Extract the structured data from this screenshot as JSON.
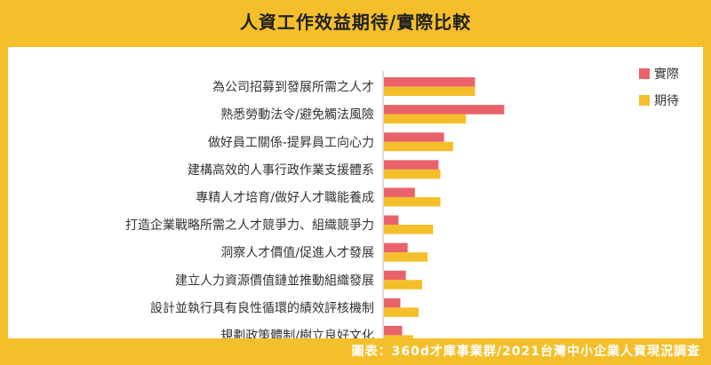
{
  "title": "人資工作效益期待/實際比較",
  "source": "圖表：360d才庫事業群/2021台灣中小企業人資現況調查",
  "chart_data": {
    "type": "bar",
    "orientation": "horizontal",
    "title": "人資工作效益期待/實際比較",
    "categories": [
      "為公司招募到發展所需之人才",
      "熟悉勞動法令/避免觸法風險",
      "做好員工關係-提昇員工向心力",
      "建構高效的人事行政作業支援體系",
      "專精人才培育/做好人才職能養成",
      "打造企業戰略所需之人才競爭力、組織競爭力",
      "洞察人才價值/促進人才發展",
      "建立人力資源價值鏈並推動組織發展",
      "設計並執行具有良性循環的績效評核機制",
      "規劃政策體制/樹立良好文化"
    ],
    "series": [
      {
        "name": "實際",
        "color": "#e9626a",
        "values": [
          50,
          66,
          33,
          30,
          17,
          8,
          13,
          12,
          9,
          10
        ]
      },
      {
        "name": "期待",
        "color": "#f4bf2b",
        "values": [
          50,
          45,
          38,
          31,
          31,
          27,
          24,
          21,
          19,
          16
        ]
      }
    ],
    "xlim": [
      0,
      80
    ],
    "xticks": [
      0,
      10,
      20,
      30,
      40,
      50,
      60,
      70,
      80
    ],
    "unit": "%",
    "legend": "top-right",
    "grid": false
  }
}
